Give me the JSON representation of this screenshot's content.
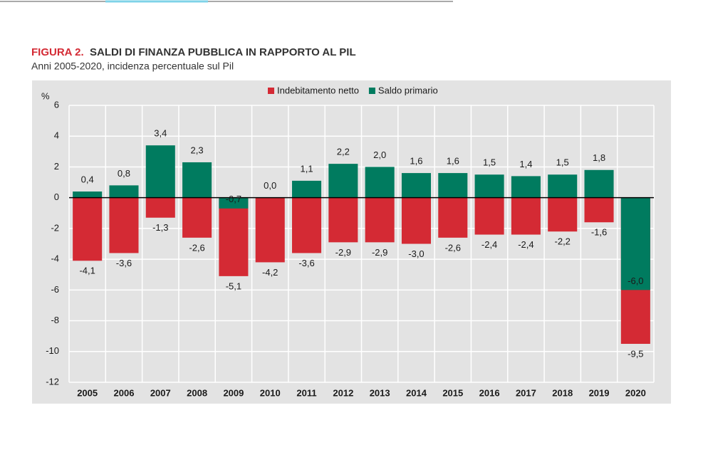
{
  "chart_data": {
    "type": "bar",
    "figure_label": "FIGURA 2.",
    "title": "SALDI DI FINANZA PUBBLICA IN RAPPORTO AL PIL",
    "subtitle": "Anni 2005-2020, incidenza percentuale sul Pil",
    "y_label": "%",
    "categories": [
      "2005",
      "2006",
      "2007",
      "2008",
      "2009",
      "2010",
      "2011",
      "2012",
      "2013",
      "2014",
      "2015",
      "2016",
      "2017",
      "2018",
      "2019",
      "2020"
    ],
    "series": [
      {
        "name": "Indebitamento netto",
        "color": "#d42a34",
        "values": [
          -4.1,
          -3.6,
          -1.3,
          -2.6,
          -5.1,
          -4.2,
          -3.6,
          -2.9,
          -2.9,
          -3.0,
          -2.6,
          -2.4,
          -2.4,
          -2.2,
          -1.6,
          -9.5
        ],
        "value_labels": [
          "-4,1",
          "-3,6",
          "-1,3",
          "-2,6",
          "-5,1",
          "-4,2",
          "-3,6",
          "-2,9",
          "-2,9",
          "-3,0",
          "-2,6",
          "-2,4",
          "-2,4",
          "-2,2",
          "-1,6",
          "-9,5"
        ]
      },
      {
        "name": "Saldo primario",
        "color": "#007b5f",
        "values": [
          0.4,
          0.8,
          3.4,
          2.3,
          -0.7,
          0.0,
          1.1,
          2.2,
          2.0,
          1.6,
          1.6,
          1.5,
          1.4,
          1.5,
          1.8,
          -6.0
        ],
        "value_labels": [
          "0,4",
          "0,8",
          "3,4",
          "2,3",
          "-0,7",
          "0,0",
          "1,1",
          "2,2",
          "2,0",
          "1,6",
          "1,6",
          "1,5",
          "1,4",
          "1,5",
          "1,8",
          "-6,0"
        ]
      }
    ],
    "ylim": [
      -12,
      6
    ],
    "yticks": [
      6,
      4,
      2,
      0,
      -2,
      -4,
      -6,
      -8,
      -10,
      -12
    ],
    "grid": true,
    "legend": "top"
  }
}
